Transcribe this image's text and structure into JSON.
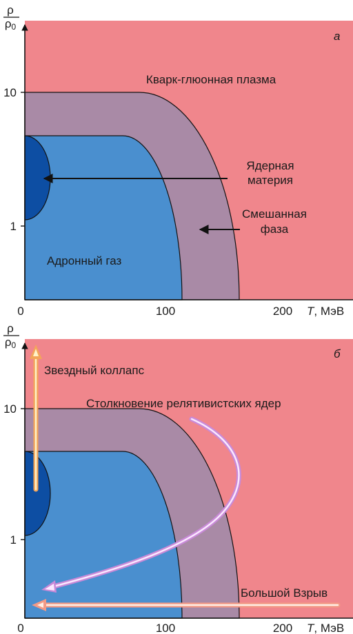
{
  "colors": {
    "plasma": "#f0868c",
    "mixed": "#a98aa6",
    "hadron": "#4a8fcf",
    "nuclear": "#0d4ea3",
    "axis": "#1a1a1a"
  },
  "y_axis": {
    "numerator": "ρ",
    "denominator": "ρ0",
    "sub": "0"
  },
  "x_axis": {
    "ticks": [
      "0",
      "100",
      "200"
    ],
    "unit_symbol": "T",
    "unit_rest": ", МэВ"
  },
  "y_ticks": [
    "10",
    "1"
  ],
  "panels": [
    {
      "letter": "а",
      "labels": {
        "plasma": "Кварк-глюонная плазма",
        "nuclear_1": "Ядерная",
        "nuclear_2": "материя",
        "mixed_1": "Смешанная",
        "mixed_2": "фаза",
        "hadron": "Адронный газ"
      }
    },
    {
      "letter": "б",
      "labels": {
        "collapse": "Звездный коллапс",
        "collision": "Столкновение релятивистских ядер",
        "bigbang": "Большой Взрыв"
      }
    }
  ]
}
